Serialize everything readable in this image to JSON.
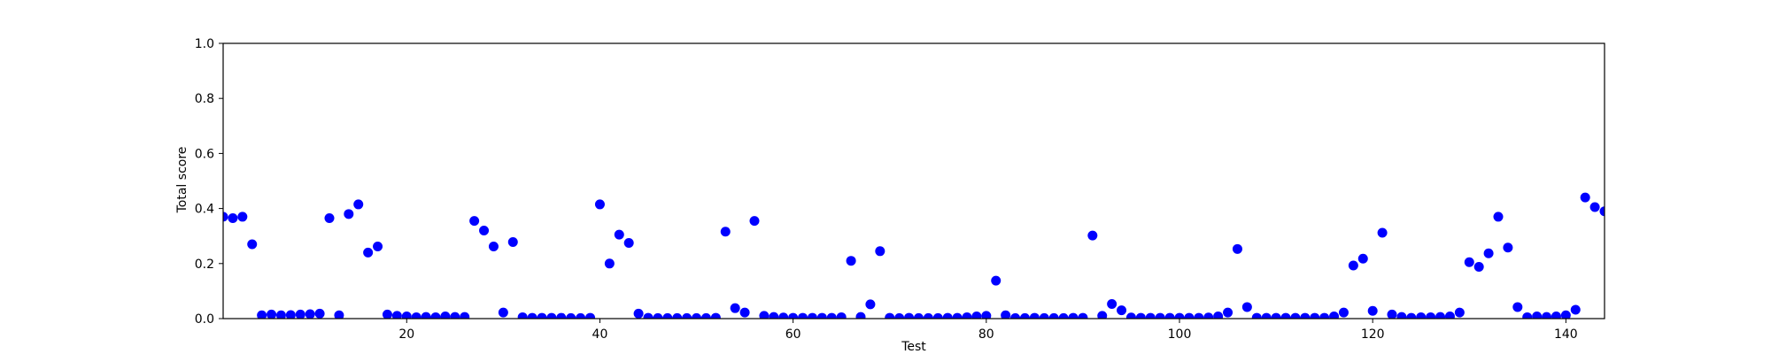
{
  "chart_data": {
    "type": "scatter",
    "title": "",
    "xlabel": "Test",
    "ylabel": "Total score",
    "xlim": [
      1,
      144
    ],
    "ylim": [
      0.0,
      1.0
    ],
    "xticks": [
      20,
      40,
      60,
      80,
      100,
      120,
      140
    ],
    "yticks": [
      "0.0",
      "0.2",
      "0.4",
      "0.6",
      "0.8",
      "1.0"
    ],
    "grid": false,
    "marker_color": "#0000ff",
    "series": [
      {
        "x": [
          1,
          2,
          3,
          4,
          5,
          6,
          7,
          8,
          9,
          10,
          11,
          12,
          13,
          14,
          15,
          16,
          17,
          18,
          19,
          20,
          21,
          22,
          23,
          24,
          25,
          26,
          27,
          28,
          29,
          30,
          31,
          32,
          33,
          34,
          35,
          36,
          37,
          38,
          39,
          40,
          41,
          42,
          43,
          44,
          45,
          46,
          47,
          48,
          49,
          50,
          51,
          52,
          53,
          54,
          55,
          56,
          57,
          58,
          59,
          60,
          61,
          62,
          63,
          64,
          65,
          66,
          67,
          68,
          69,
          70,
          71,
          72,
          73,
          74,
          75,
          76,
          77,
          78,
          79,
          80,
          81,
          82,
          83,
          84,
          85,
          86,
          87,
          88,
          89,
          90,
          91,
          92,
          93,
          94,
          95,
          96,
          97,
          98,
          99,
          100,
          101,
          102,
          103,
          104,
          105,
          106,
          107,
          108,
          109,
          110,
          111,
          112,
          113,
          114,
          115,
          116,
          117,
          118,
          119,
          120,
          121,
          122,
          123,
          124,
          125,
          126,
          127,
          128,
          129,
          130,
          131,
          132,
          133,
          134,
          135,
          136,
          137,
          138,
          139,
          140,
          141,
          142,
          143,
          144
        ],
        "y": [
          0.37,
          0.365,
          0.37,
          0.27,
          0.012,
          0.015,
          0.012,
          0.013,
          0.015,
          0.016,
          0.018,
          0.365,
          0.012,
          0.38,
          0.415,
          0.24,
          0.262,
          0.015,
          0.01,
          0.008,
          0.005,
          0.006,
          0.005,
          0.008,
          0.006,
          0.006,
          0.355,
          0.32,
          0.262,
          0.022,
          0.278,
          0.005,
          0.003,
          0.003,
          0.003,
          0.003,
          0.002,
          0.002,
          0.003,
          0.415,
          0.2,
          0.305,
          0.275,
          0.018,
          0.003,
          0.002,
          0.002,
          0.002,
          0.002,
          0.002,
          0.002,
          0.003,
          0.316,
          0.038,
          0.022,
          0.355,
          0.01,
          0.006,
          0.004,
          0.003,
          0.003,
          0.003,
          0.003,
          0.003,
          0.005,
          0.21,
          0.006,
          0.052,
          0.245,
          0.003,
          0.002,
          0.003,
          0.002,
          0.002,
          0.002,
          0.003,
          0.003,
          0.005,
          0.008,
          0.01,
          0.138,
          0.012,
          0.002,
          0.002,
          0.003,
          0.002,
          0.002,
          0.002,
          0.003,
          0.003,
          0.302,
          0.01,
          0.053,
          0.03,
          0.004,
          0.003,
          0.003,
          0.003,
          0.003,
          0.003,
          0.003,
          0.003,
          0.004,
          0.008,
          0.022,
          0.253,
          0.042,
          0.003,
          0.003,
          0.003,
          0.003,
          0.003,
          0.003,
          0.003,
          0.003,
          0.008,
          0.022,
          0.193,
          0.218,
          0.028,
          0.312,
          0.015,
          0.006,
          0.003,
          0.005,
          0.005,
          0.006,
          0.008,
          0.022,
          0.205,
          0.188,
          0.237,
          0.37,
          0.258,
          0.042,
          0.005,
          0.008,
          0.006,
          0.008,
          0.012,
          0.032,
          0.44,
          0.405,
          0.39
        ]
      }
    ]
  }
}
